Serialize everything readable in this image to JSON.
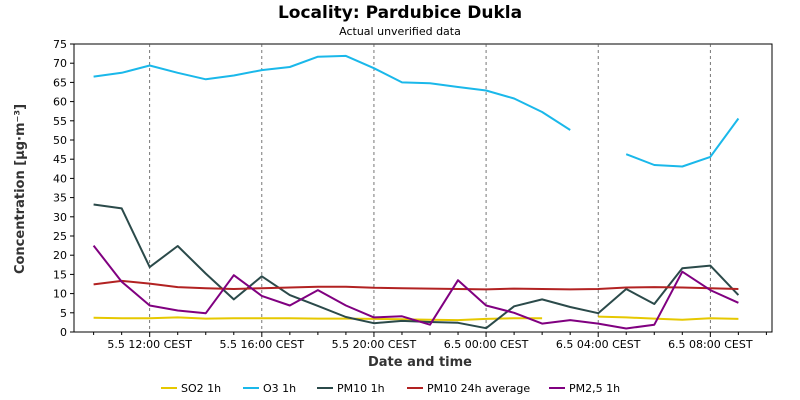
{
  "chart_data": {
    "type": "line",
    "title": "Locality: Pardubice Dukla",
    "subtitle": "Actual unverified data",
    "xlabel": "Date and time",
    "ylabel": "Concentration [µg·m⁻³]",
    "ylim": [
      0,
      75
    ],
    "yticks": [
      0,
      5,
      10,
      15,
      20,
      25,
      30,
      35,
      40,
      45,
      50,
      55,
      60,
      65,
      70,
      75
    ],
    "xtick_labels": [
      "5.5 12:00 CEST",
      "5.5 16:00 CEST",
      "5.5 20:00 CEST",
      "6.5 00:00 CEST",
      "6.5 04:00 CEST",
      "6.5 08:00 CEST"
    ],
    "xtick_hours": [
      12,
      16,
      20,
      24,
      28,
      32
    ],
    "x_range_hours": [
      9.3,
      34.2
    ],
    "grid": "vertical dashed at major ticks",
    "legend_position": "bottom",
    "x": [
      10,
      11,
      12,
      13,
      14,
      15,
      16,
      17,
      18,
      19,
      20,
      21,
      22,
      23,
      24,
      25,
      26,
      27,
      28,
      29,
      30,
      31,
      32,
      33
    ],
    "series": [
      {
        "name": "SO2 1h",
        "color": "#e6c800",
        "values": [
          3.7,
          3.6,
          3.6,
          3.8,
          3.5,
          3.6,
          3.6,
          3.6,
          3.5,
          3.5,
          3.4,
          3.3,
          3.2,
          3.1,
          3.4,
          3.6,
          3.6,
          null,
          4.0,
          3.8,
          3.5,
          3.2,
          3.6,
          3.4
        ]
      },
      {
        "name": "O3 1h",
        "color": "#1ab8ea",
        "values": [
          66.5,
          67.5,
          69.4,
          67.5,
          65.8,
          66.8,
          68.2,
          69.0,
          71.7,
          71.9,
          68.7,
          65.0,
          64.8,
          63.8,
          62.9,
          60.8,
          57.3,
          52.6,
          null,
          46.3,
          43.5,
          43.1,
          45.6,
          55.6
        ]
      },
      {
        "name": "PM10 1h",
        "color": "#2b4a4a",
        "values": [
          33.2,
          32.2,
          16.9,
          22.4,
          15.2,
          8.5,
          14.5,
          9.6,
          6.8,
          3.9,
          2.3,
          2.9,
          2.6,
          2.4,
          1.0,
          6.7,
          8.5,
          6.5,
          4.9,
          11.2,
          7.3,
          16.6,
          17.3,
          9.6
        ]
      },
      {
        "name": "PM10 24h average",
        "color": "#b22222",
        "values": [
          12.4,
          13.3,
          12.6,
          11.7,
          11.4,
          11.2,
          11.4,
          11.6,
          11.8,
          11.8,
          11.5,
          11.4,
          11.3,
          11.2,
          11.1,
          11.3,
          11.2,
          11.1,
          11.2,
          11.6,
          11.7,
          11.6,
          11.4,
          11.2
        ]
      },
      {
        "name": "PM2,5 1h",
        "color": "#800080",
        "values": [
          22.5,
          13.1,
          6.9,
          5.6,
          4.9,
          14.8,
          9.4,
          6.9,
          10.9,
          6.9,
          3.8,
          4.1,
          1.9,
          13.5,
          6.9,
          5.0,
          2.2,
          3.1,
          2.2,
          0.9,
          1.9,
          15.7,
          10.9,
          7.6
        ]
      }
    ]
  }
}
